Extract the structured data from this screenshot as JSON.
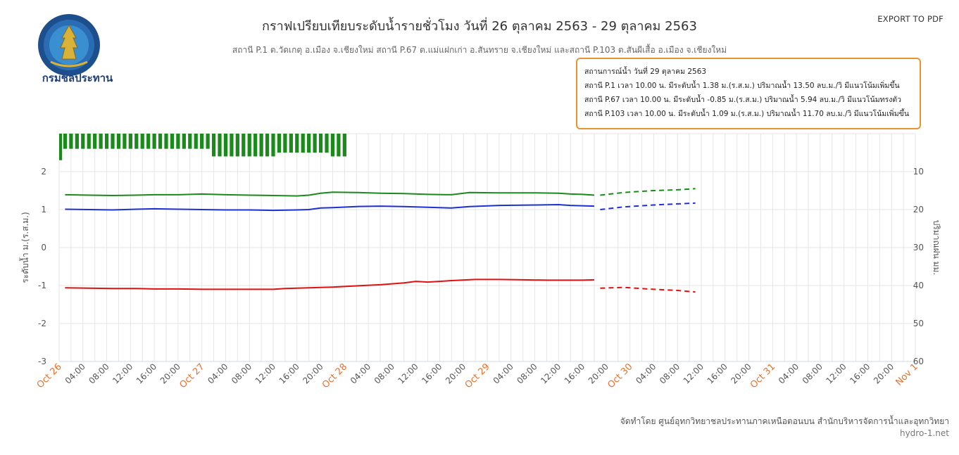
{
  "header": {
    "title": "กราฟเปรียบเทียบระดับน้ำรายชั่วโมง วันที่ 26 ตุลาคม 2563 - 29 ตุลาคม 2563",
    "subtitle": "สถานี P.1 ต.วัดเกตุ อ.เมือง จ.เชียงใหม่ สถานี P.67 ต.แม่แฝกเก่า อ.สันทราย จ.เชียงใหม่ และสถานี P.103 ต.สันผีเสื้อ อ.เมือง จ.เชียงใหม่",
    "export_label": "EXPORT TO PDF",
    "logo_text": "กรมชลประทาน"
  },
  "status_box": {
    "lines": [
      "สถานการณ์น้ำ วันที่ 29 ตุลาคม 2563",
      "สถานี P.1 เวลา 10.00 น. มีระดับน้ำ 1.38 ม.(ร.ส.ม.) ปริมาณน้ำ 13.50 ลบ.ม./วิ มีแนวโน้มเพิ่มขึ้น",
      "สถานี P.67 เวลา 10.00 น. มีระดับน้ำ -0.85 ม.(ร.ส.ม.) ปริมาณน้ำ 5.94 ลบ.ม./วิ มีแนวโน้มทรงตัว",
      "สถานี P.103 เวลา 10.00 น. มีระดับน้ำ 1.09 ม.(ร.ส.ม.) ปริมาณน้ำ 11.70 ลบ.ม./วิ มีแนวโน้มเพิ่มขึ้น"
    ],
    "border_color": "#e8952f"
  },
  "footer": {
    "credit": "จัดทำโดย ศูนย์อุทกวิทยาชลประทานภาคเหนือตอนบน สำนักบริหารจัดการน้ำและอุทกวิทยา",
    "site": "hydro-1.net"
  },
  "chart_data": {
    "type": "line",
    "ylabel": "ระดับน้ำ ม.(ร.ส.ม.)",
    "y2label": "ปริมาณฝน มม.",
    "ylim": [
      -3,
      3
    ],
    "yticks": [
      -3,
      -2,
      -1,
      0,
      1,
      2
    ],
    "y2lim": [
      0,
      60
    ],
    "y2ticks": [
      10,
      20,
      30,
      40,
      50,
      60
    ],
    "y2_reversed": true,
    "x_unit": "hours since Oct 26 00:00",
    "xlim": [
      0,
      144
    ],
    "x_major_ticks": [
      {
        "x": 0,
        "label": "Oct 26"
      },
      {
        "x": 24,
        "label": "Oct 27"
      },
      {
        "x": 48,
        "label": "Oct 28"
      },
      {
        "x": 72,
        "label": "Oct 29"
      },
      {
        "x": 96,
        "label": "Oct 30"
      },
      {
        "x": 120,
        "label": "Oct 31"
      },
      {
        "x": 144,
        "label": "Nov 1"
      }
    ],
    "x_minor_labels": [
      "04:00",
      "08:00",
      "12:00",
      "16:00",
      "20:00"
    ],
    "colors": {
      "major_tick": "#e8702a",
      "grid": "#e6e6e6"
    },
    "grid": true,
    "rain_bars": {
      "color": "#1a8a1a",
      "x": [
        0,
        1,
        2,
        3,
        4,
        5,
        6,
        7,
        8,
        9,
        10,
        11,
        12,
        13,
        14,
        15,
        16,
        17,
        18,
        19,
        20,
        21,
        22,
        23,
        24,
        25,
        26,
        27,
        28,
        29,
        30,
        31,
        32,
        33,
        34,
        35,
        36,
        37,
        38,
        39,
        40,
        41,
        42,
        43,
        44,
        45,
        46,
        47,
        48
      ],
      "values": [
        7,
        4,
        4,
        4,
        4,
        4,
        4,
        4,
        4,
        4,
        4,
        4,
        4,
        4,
        4,
        4,
        4,
        4,
        4,
        4,
        4,
        4,
        4,
        4,
        4,
        4,
        6,
        6,
        6,
        6,
        6,
        6,
        6,
        6,
        6,
        6,
        6,
        5,
        5,
        5,
        5,
        5,
        5,
        5,
        5,
        5,
        6,
        6,
        6
      ]
    },
    "series": [
      {
        "name": "P.1",
        "color": "#1a8a1a",
        "observed": [
          [
            1,
            1.39
          ],
          [
            5,
            1.38
          ],
          [
            9,
            1.37
          ],
          [
            13,
            1.38
          ],
          [
            16,
            1.39
          ],
          [
            20,
            1.39
          ],
          [
            24,
            1.41
          ],
          [
            28,
            1.39
          ],
          [
            32,
            1.38
          ],
          [
            36,
            1.37
          ],
          [
            40,
            1.36
          ],
          [
            42,
            1.38
          ],
          [
            44,
            1.43
          ],
          [
            46,
            1.46
          ],
          [
            50,
            1.45
          ],
          [
            54,
            1.43
          ],
          [
            58,
            1.42
          ],
          [
            62,
            1.4
          ],
          [
            66,
            1.39
          ],
          [
            69,
            1.45
          ],
          [
            74,
            1.44
          ],
          [
            80,
            1.44
          ],
          [
            84,
            1.43
          ],
          [
            86,
            1.41
          ],
          [
            88,
            1.4
          ],
          [
            90,
            1.38
          ]
        ],
        "forecast": [
          [
            91,
            1.38
          ],
          [
            95,
            1.45
          ],
          [
            100,
            1.5
          ],
          [
            104,
            1.52
          ],
          [
            107,
            1.55
          ]
        ]
      },
      {
        "name": "P.103",
        "color": "#1f2fd6",
        "observed": [
          [
            1,
            1.01
          ],
          [
            5,
            1.0
          ],
          [
            9,
            0.99
          ],
          [
            13,
            1.01
          ],
          [
            16,
            1.02
          ],
          [
            20,
            1.01
          ],
          [
            24,
            1.0
          ],
          [
            28,
            0.99
          ],
          [
            32,
            0.99
          ],
          [
            36,
            0.98
          ],
          [
            40,
            0.99
          ],
          [
            42,
            1.0
          ],
          [
            44,
            1.04
          ],
          [
            46,
            1.05
          ],
          [
            50,
            1.08
          ],
          [
            54,
            1.09
          ],
          [
            58,
            1.08
          ],
          [
            62,
            1.06
          ],
          [
            66,
            1.04
          ],
          [
            69,
            1.08
          ],
          [
            74,
            1.11
          ],
          [
            80,
            1.12
          ],
          [
            84,
            1.13
          ],
          [
            86,
            1.11
          ],
          [
            88,
            1.1
          ],
          [
            90,
            1.09
          ]
        ],
        "forecast": [
          [
            91,
            1.0
          ],
          [
            95,
            1.07
          ],
          [
            100,
            1.12
          ],
          [
            104,
            1.15
          ],
          [
            107,
            1.17
          ]
        ]
      },
      {
        "name": "P.67",
        "color": "#e01010",
        "observed": [
          [
            1,
            -1.06
          ],
          [
            5,
            -1.07
          ],
          [
            9,
            -1.08
          ],
          [
            13,
            -1.08
          ],
          [
            16,
            -1.09
          ],
          [
            20,
            -1.09
          ],
          [
            24,
            -1.1
          ],
          [
            28,
            -1.1
          ],
          [
            32,
            -1.1
          ],
          [
            36,
            -1.1
          ],
          [
            38,
            -1.08
          ],
          [
            42,
            -1.06
          ],
          [
            46,
            -1.04
          ],
          [
            50,
            -1.01
          ],
          [
            54,
            -0.98
          ],
          [
            58,
            -0.93
          ],
          [
            60,
            -0.89
          ],
          [
            62,
            -0.91
          ],
          [
            66,
            -0.87
          ],
          [
            70,
            -0.84
          ],
          [
            74,
            -0.84
          ],
          [
            78,
            -0.85
          ],
          [
            82,
            -0.86
          ],
          [
            86,
            -0.86
          ],
          [
            88,
            -0.86
          ],
          [
            90,
            -0.85
          ]
        ],
        "forecast": [
          [
            91,
            -1.07
          ],
          [
            95,
            -1.05
          ],
          [
            100,
            -1.1
          ],
          [
            104,
            -1.13
          ],
          [
            107,
            -1.17
          ]
        ]
      }
    ]
  }
}
